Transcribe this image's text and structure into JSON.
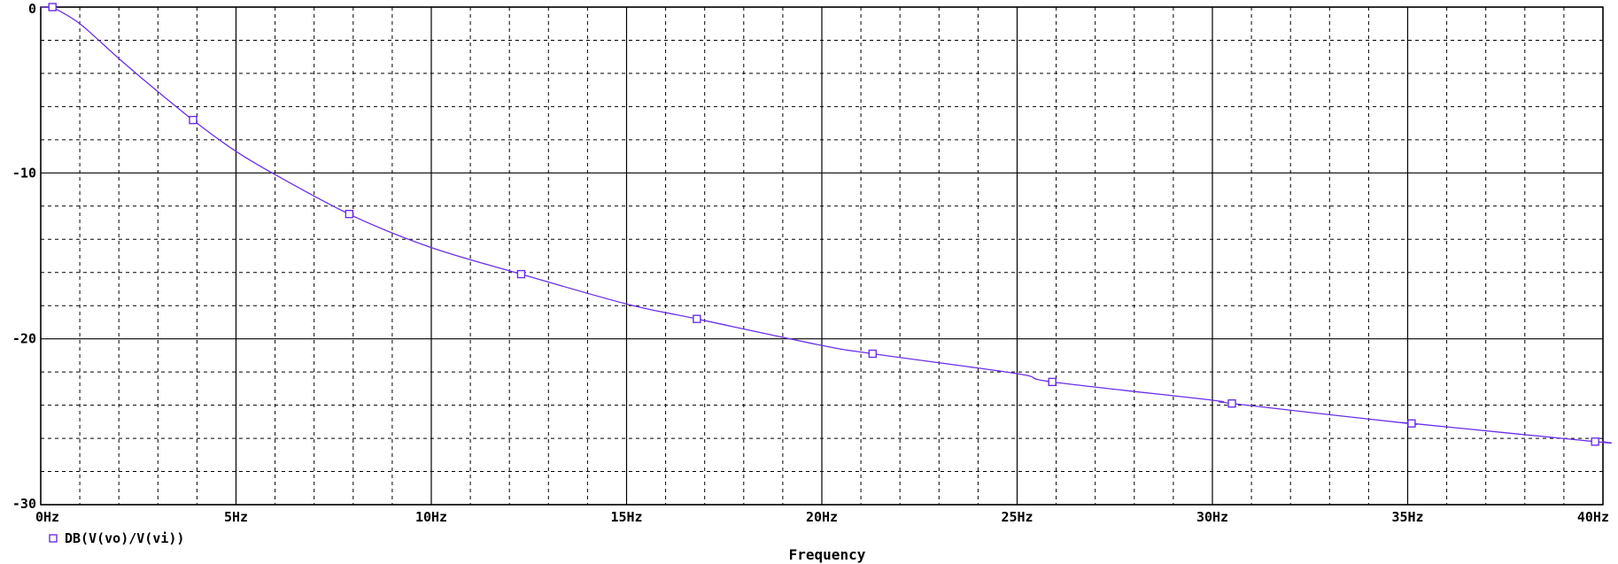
{
  "chart_data": {
    "type": "line",
    "title": "",
    "xlabel": "Frequency",
    "ylabel": "",
    "xlim": [
      0,
      40
    ],
    "ylim": [
      -30,
      0
    ],
    "x_ticks": [
      0,
      5,
      10,
      15,
      20,
      25,
      30,
      35,
      40
    ],
    "x_tick_labels": [
      "0Hz",
      "5Hz",
      "10Hz",
      "15Hz",
      "20Hz",
      "25Hz",
      "30Hz",
      "35Hz",
      "40Hz"
    ],
    "y_ticks": [
      0,
      -10,
      -20,
      -30
    ],
    "y_tick_labels": [
      "0",
      "-10",
      "-20",
      "-30"
    ],
    "x_minor_step": 1,
    "y_minor_step": 2,
    "grid": true,
    "legend_position": "bottom-left",
    "series": [
      {
        "name": "DB(V(vo)/V(vi))",
        "color": "#6a2ee8",
        "marker": "square",
        "x": [
          0.3,
          1.0,
          2.0,
          3.0,
          4.0,
          5.0,
          6.0,
          8.0,
          10.0,
          12.3,
          15.0,
          16.8,
          20.0,
          21.3,
          25.0,
          25.9,
          30.0,
          30.5,
          35.0,
          35.1,
          39.8,
          40.0
        ],
        "y": [
          0.0,
          -1.0,
          -3.1,
          -5.1,
          -7.0,
          -8.7,
          -10.1,
          -12.6,
          -14.5,
          -16.1,
          -17.9,
          -18.8,
          -20.4,
          -20.9,
          -22.1,
          -22.6,
          -23.7,
          -23.9,
          -25.1,
          -25.1,
          -26.2,
          -26.2
        ],
        "marker_x": [
          0.3,
          3.9,
          7.9,
          12.3,
          16.8,
          21.3,
          25.9,
          30.5,
          35.1,
          39.8
        ]
      }
    ]
  }
}
